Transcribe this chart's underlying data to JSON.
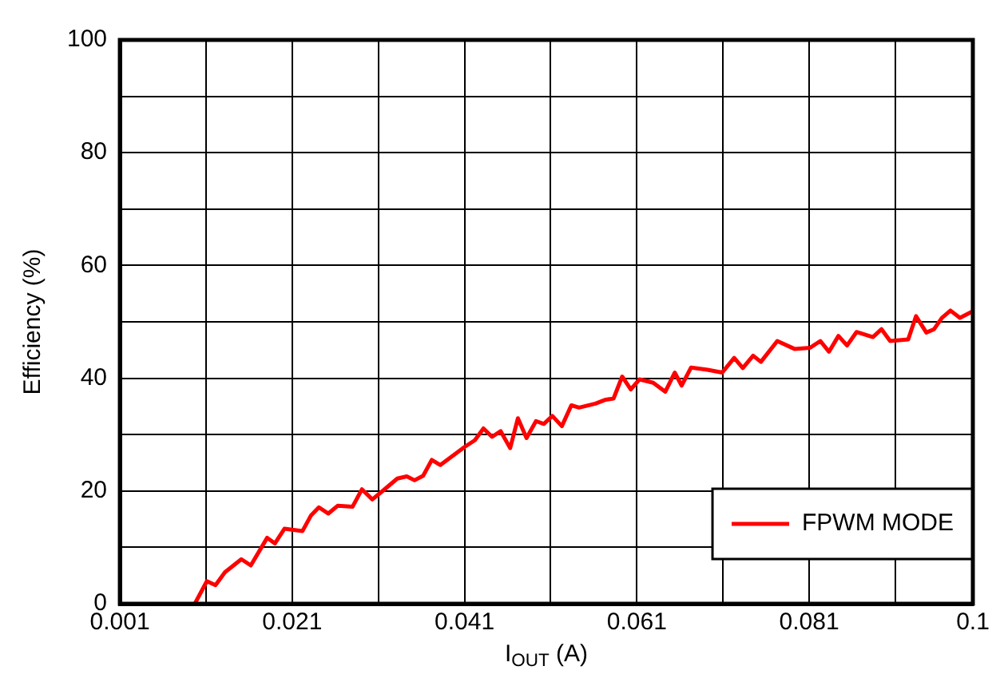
{
  "chart_data": {
    "type": "line",
    "xlabel": "I$_{OUT}$ (A)",
    "ylabel": "Efficiency (%)",
    "xlim": [
      0.001,
      0.1
    ],
    "xticks": [
      0.001,
      {
        "value": 0.011,
        "label": null
      },
      0.021,
      {
        "value": 0.031,
        "label": null
      },
      0.041,
      {
        "value": 0.051,
        "label": null
      },
      0.061,
      {
        "value": 0.071,
        "label": null
      },
      0.081,
      {
        "value": 0.091,
        "label": null
      },
      0.1
    ],
    "ylim": [
      0,
      100
    ],
    "yticks": [
      0,
      {
        "value": 10,
        "label": null
      },
      20,
      {
        "value": 30,
        "label": null
      },
      40,
      {
        "value": 50,
        "label": null
      },
      60,
      {
        "value": 70,
        "label": null
      },
      80,
      {
        "value": 90,
        "label": null
      },
      100
    ],
    "grid": true,
    "legend": "bottom right",
    "marker": "none",
    "line_style": "solid",
    "series": [
      {
        "name": "FPWM MODE",
        "color": "#ff0000",
        "x": [
          0.0097,
          0.0111,
          0.0121,
          0.0132,
          0.0151,
          0.0162,
          0.0181,
          0.019,
          0.0201,
          0.0222,
          0.0232,
          0.0241,
          0.0252,
          0.0263,
          0.028,
          0.0291,
          0.0303,
          0.0315,
          0.0332,
          0.0343,
          0.0352,
          0.0362,
          0.0372,
          0.0382,
          0.041,
          0.0422,
          0.0432,
          0.0442,
          0.0452,
          0.0463,
          0.0472,
          0.0482,
          0.0493,
          0.0502,
          0.0512,
          0.0523,
          0.0534,
          0.0543,
          0.0562,
          0.0574,
          0.0583,
          0.0593,
          0.0603,
          0.0613,
          0.0629,
          0.0643,
          0.0654,
          0.0662,
          0.0673,
          0.0692,
          0.0709,
          0.0723,
          0.0733,
          0.0745,
          0.0754,
          0.0773,
          0.0793,
          0.0811,
          0.0823,
          0.0833,
          0.0844,
          0.0854,
          0.0865,
          0.0884,
          0.0894,
          0.0904,
          0.0925,
          0.0934,
          0.0946,
          0.0955,
          0.0964,
          0.0974,
          0.0985,
          0.0999
        ],
        "values": [
          0,
          4,
          3.3,
          5.6,
          7.9,
          6.8,
          11.7,
          10.7,
          13.3,
          12.9,
          15.7,
          17.1,
          16,
          17.4,
          17.2,
          20.3,
          18.5,
          20,
          22.2,
          22.6,
          21.9,
          22.7,
          25.5,
          24.6,
          27.8,
          29,
          31.1,
          29.6,
          30.6,
          27.6,
          32.9,
          29.4,
          32.4,
          31.9,
          33.3,
          31.5,
          35.2,
          34.8,
          35.5,
          36.2,
          36.4,
          40.3,
          38,
          39.8,
          39.2,
          37.6,
          41,
          38.7,
          41.9,
          41.5,
          41,
          43.6,
          41.8,
          44,
          42.9,
          46.6,
          45.2,
          45.4,
          46.6,
          44.7,
          47.5,
          45.8,
          48.2,
          47.3,
          48.7,
          46.6,
          46.9,
          51,
          48.1,
          48.7,
          50.7,
          52,
          50.7,
          51.8
        ]
      }
    ]
  }
}
